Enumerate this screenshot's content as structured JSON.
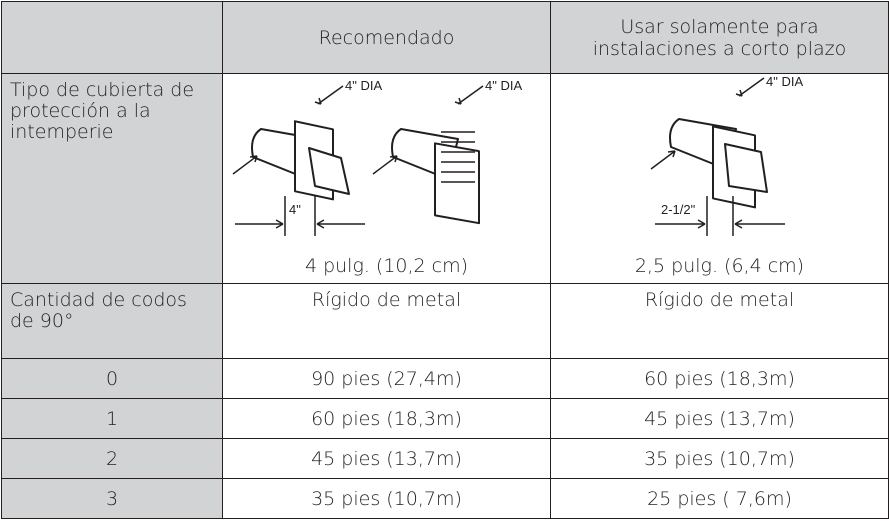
{
  "table": {
    "header": [
      "Recomendado",
      "Usar solamente para instalaciones a corto plazo"
    ],
    "vent_row": {
      "label": "Tipo de cubierta de protección a la intemperie",
      "cells": [
        {
          "callouts": [
            "4\" DIA",
            "4\" DIA",
            "4\""
          ],
          "caption": "4 pulg. (10,2 cm)"
        },
        {
          "callouts": [
            "4\" DIA",
            "2-1/2\""
          ],
          "caption": "2,5 pulg. (6,4 cm)"
        }
      ]
    },
    "elbow_row": {
      "label": "Cantidad de codos de 90°",
      "cells": [
        "Rígido de metal",
        "Rígido de metal"
      ]
    },
    "rows": [
      [
        "0",
        "90 pies (27,4m)",
        "60 pies (18,3m)"
      ],
      [
        "1",
        "60 pies (18,3m)",
        "45 pies (13,7m)"
      ],
      [
        "2",
        "45 pies (13,7m)",
        "35 pies (10,7m)"
      ],
      [
        "3",
        "35 pies (10,7m)",
        "25 pies ( 7,6m)"
      ]
    ]
  }
}
